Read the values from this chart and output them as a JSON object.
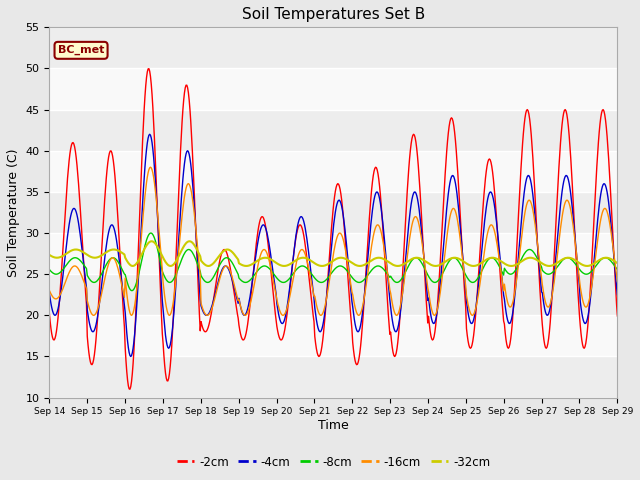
{
  "title": "Soil Temperatures Set B",
  "xlabel": "Time",
  "ylabel": "Soil Temperature (C)",
  "annotation": "BC_met",
  "ylim": [
    10,
    55
  ],
  "series_colors": {
    "-2cm": "#FF0000",
    "-4cm": "#0000CC",
    "-8cm": "#00CC00",
    "-16cm": "#FF8C00",
    "-32cm": "#CCCC00"
  },
  "background_color": "#E8E8E8",
  "plot_bg_color": "#FFFFFF",
  "x_labels": [
    "Sep 14",
    "Sep 15",
    "Sep 16",
    "Sep 17",
    "Sep 18",
    "Sep 19",
    "Sep 20",
    "Sep 21",
    "Sep 22",
    "Sep 23",
    "Sep 24",
    "Sep 25",
    "Sep 26",
    "Sep 27",
    "Sep 28",
    "Sep 29"
  ],
  "n_days": 15,
  "yticks": [
    10,
    15,
    20,
    25,
    30,
    35,
    40,
    45,
    50,
    55
  ],
  "figsize": [
    6.4,
    4.8
  ],
  "dpi": 100
}
